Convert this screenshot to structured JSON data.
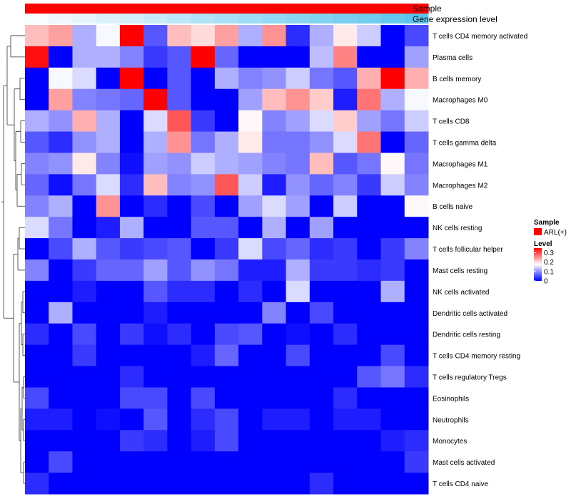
{
  "chart_data": {
    "type": "heatmap",
    "annotations": {
      "sample_label": "Sample",
      "gene_label": "Gene expression level"
    },
    "legend": {
      "sample_title": "Sample",
      "sample_entry": "ARL(+)",
      "sample_color": "#ff0000",
      "level_title": "Level",
      "level_ticks": [
        "0.3",
        "0.2",
        "0.1",
        "0"
      ],
      "level_tick_values": [
        0.3,
        0.2,
        0.1,
        0.0
      ],
      "level_max": 0.35,
      "level_min": 0.0
    },
    "colors": {
      "low": "#0000ff",
      "mid": "#ffffff",
      "high": "#ff0000",
      "gene_low": "#f7fcfe",
      "gene_high": "#5bc4ee",
      "dendrogram": "#333333"
    },
    "color_scale": {
      "min": 0.0,
      "mid": 0.175,
      "max": 0.35
    },
    "rows": [
      "T cells CD4 memory activated",
      "Plasma cells",
      "B cells memory",
      "Macrophages M0",
      "T cells CD8",
      "T cells gamma delta",
      "Macrophages M1",
      "Macrophages M2",
      "B cells naive",
      "NK cells resting",
      "T cells follicular helper",
      "Mast cells resting",
      "NK cells activated",
      "Dendritic cells activated",
      "Dendritic cells resting",
      "T cells CD4 memory resting",
      "T cells regulatory  Tregs",
      "Eosinophils",
      "Neutrophils",
      "Monocytes",
      "Mast cells activated",
      "T cells CD4 naive"
    ],
    "values": [
      [
        0.22,
        0.24,
        0.12,
        0.17,
        0.35,
        0.06,
        0.22,
        0.2,
        0.24,
        0.12,
        0.25,
        0.03,
        0.12,
        0.19,
        0.14,
        0.0,
        0.05
      ],
      [
        0.34,
        0.0,
        0.12,
        0.12,
        0.09,
        0.04,
        0.06,
        0.35,
        0.07,
        0.0,
        0.0,
        0.0,
        0.13,
        0.26,
        0.0,
        0.0,
        0.11
      ],
      [
        0.0,
        0.17,
        0.15,
        0.0,
        0.35,
        0.0,
        0.06,
        0.0,
        0.12,
        0.09,
        0.1,
        0.14,
        0.08,
        0.06,
        0.23,
        0.35,
        0.23
      ],
      [
        0.0,
        0.24,
        0.09,
        0.08,
        0.07,
        0.35,
        0.06,
        0.0,
        0.0,
        0.11,
        0.22,
        0.25,
        0.21,
        0.02,
        0.27,
        0.12,
        0.17
      ],
      [
        0.12,
        0.1,
        0.23,
        0.12,
        0.0,
        0.15,
        0.29,
        0.04,
        0.0,
        0.18,
        0.09,
        0.11,
        0.15,
        0.21,
        0.11,
        0.08,
        0.14
      ],
      [
        0.06,
        0.03,
        0.1,
        0.12,
        0.0,
        0.12,
        0.25,
        0.08,
        0.12,
        0.19,
        0.08,
        0.08,
        0.1,
        0.15,
        0.27,
        0.0,
        0.07
      ],
      [
        0.09,
        0.1,
        0.19,
        0.09,
        0.01,
        0.11,
        0.1,
        0.14,
        0.12,
        0.11,
        0.09,
        0.08,
        0.22,
        0.06,
        0.08,
        0.18,
        0.08
      ],
      [
        0.07,
        0.01,
        0.08,
        0.15,
        0.03,
        0.22,
        0.09,
        0.1,
        0.29,
        0.14,
        0.02,
        0.1,
        0.07,
        0.09,
        0.04,
        0.14,
        0.09
      ],
      [
        0.09,
        0.12,
        0.0,
        0.25,
        0.0,
        0.03,
        0.0,
        0.05,
        0.0,
        0.11,
        0.15,
        0.11,
        0.0,
        0.14,
        0.0,
        0.0,
        0.18
      ],
      [
        0.15,
        0.08,
        0.0,
        0.02,
        0.12,
        0.0,
        0.0,
        0.06,
        0.06,
        0.0,
        0.12,
        0.0,
        0.11,
        0.0,
        0.0,
        0.0,
        0.0
      ],
      [
        0.0,
        0.05,
        0.12,
        0.06,
        0.04,
        0.05,
        0.06,
        0.0,
        0.04,
        0.15,
        0.05,
        0.07,
        0.03,
        0.04,
        0.0,
        0.04,
        0.09
      ],
      [
        0.09,
        0.0,
        0.04,
        0.07,
        0.07,
        0.11,
        0.06,
        0.1,
        0.08,
        0.02,
        0.02,
        0.12,
        0.04,
        0.04,
        0.03,
        0.04,
        0.0
      ],
      [
        0.0,
        0.0,
        0.02,
        0.0,
        0.0,
        0.06,
        0.03,
        0.03,
        0.0,
        0.03,
        0.0,
        0.15,
        0.0,
        0.0,
        0.0,
        0.12,
        0.0
      ],
      [
        0.0,
        0.12,
        0.0,
        0.0,
        0.0,
        0.02,
        0.0,
        0.0,
        0.0,
        0.0,
        0.09,
        0.0,
        0.05,
        0.0,
        0.0,
        0.0,
        0.0
      ],
      [
        0.03,
        0.0,
        0.05,
        0.0,
        0.04,
        0.01,
        0.03,
        0.0,
        0.05,
        0.06,
        0.0,
        0.01,
        0.0,
        0.03,
        0.0,
        0.0,
        0.0
      ],
      [
        0.0,
        0.0,
        0.04,
        0.0,
        0.0,
        0.0,
        0.0,
        0.02,
        0.07,
        0.0,
        0.0,
        0.05,
        0.0,
        0.0,
        0.0,
        0.05,
        0.0
      ],
      [
        0.0,
        0.0,
        0.0,
        0.0,
        0.03,
        0.0,
        0.0,
        0.0,
        0.0,
        0.0,
        0.0,
        0.0,
        0.0,
        0.0,
        0.06,
        0.08,
        0.03
      ],
      [
        0.05,
        0.0,
        0.0,
        0.0,
        0.05,
        0.05,
        0.0,
        0.05,
        0.0,
        0.0,
        0.0,
        0.0,
        0.0,
        0.03,
        0.0,
        0.0,
        0.0
      ],
      [
        0.02,
        0.02,
        0.0,
        0.01,
        0.0,
        0.06,
        0.0,
        0.03,
        0.05,
        0.0,
        0.02,
        0.02,
        0.0,
        0.02,
        0.02,
        0.0,
        0.0
      ],
      [
        0.0,
        0.0,
        0.0,
        0.0,
        0.04,
        0.03,
        0.0,
        0.02,
        0.05,
        0.0,
        0.0,
        0.0,
        0.0,
        0.0,
        0.0,
        0.02,
        0.03
      ],
      [
        0.0,
        0.05,
        0.0,
        0.0,
        0.0,
        0.0,
        0.0,
        0.0,
        0.0,
        0.0,
        0.0,
        0.0,
        0.0,
        0.0,
        0.0,
        0.0,
        0.04
      ],
      [
        0.03,
        0.0,
        0.0,
        0.0,
        0.0,
        0.0,
        0.0,
        0.0,
        0.0,
        0.0,
        0.0,
        0.0,
        0.03,
        0.0,
        0.0,
        0.0,
        0.0
      ]
    ],
    "gene_expression": [
      0.0,
      0.05,
      0.12,
      0.18,
      0.24,
      0.3,
      0.38,
      0.45,
      0.52,
      0.58,
      0.64,
      0.7,
      0.75,
      0.8,
      0.86,
      0.92,
      1.0
    ],
    "sample_groups": [
      "ARL(+)",
      "ARL(+)",
      "ARL(+)",
      "ARL(+)",
      "ARL(+)",
      "ARL(+)",
      "ARL(+)",
      "ARL(+)",
      "ARL(+)",
      "ARL(+)",
      "ARL(+)",
      "ARL(+)",
      "ARL(+)",
      "ARL(+)",
      "ARL(+)",
      "ARL(+)",
      "ARL(+)"
    ]
  }
}
